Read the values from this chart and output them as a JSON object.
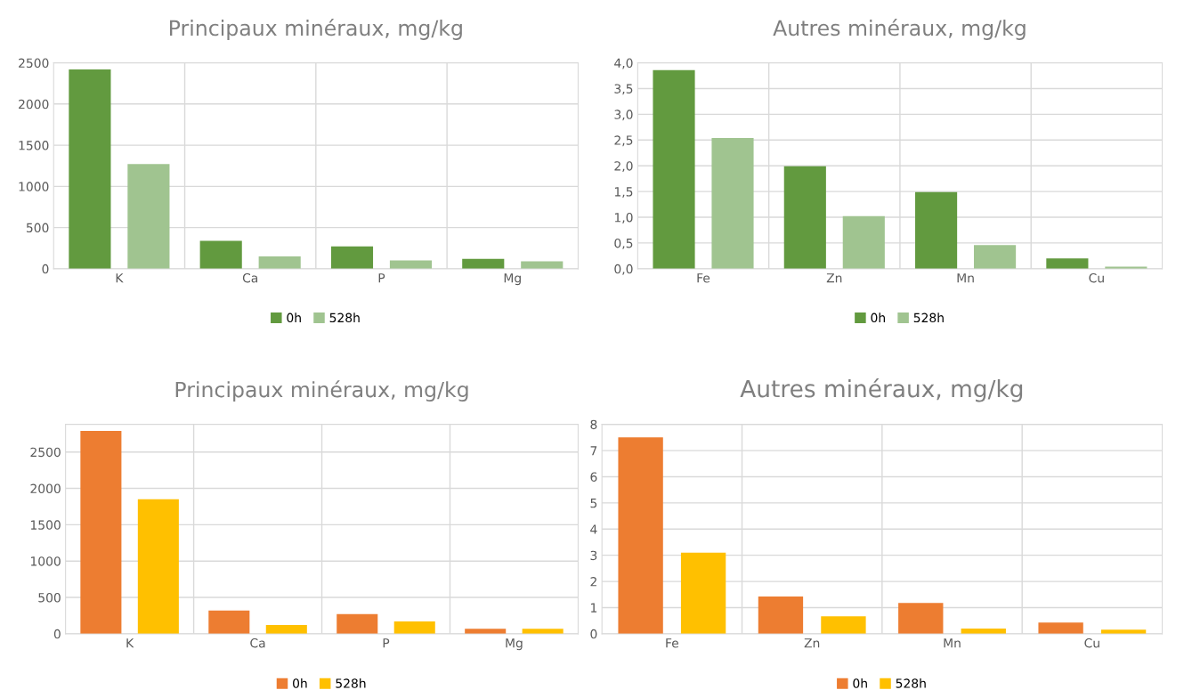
{
  "chart_data": [
    {
      "type": "bar",
      "title": "Principaux minéraux, mg/kg",
      "categories": [
        "K",
        "Ca",
        "P",
        "Mg"
      ],
      "series": [
        {
          "name": "0h",
          "color": "#629a3f",
          "values": [
            2420,
            340,
            270,
            120
          ]
        },
        {
          "name": "528h",
          "color": "#a0c490",
          "values": [
            1270,
            150,
            100,
            90
          ]
        }
      ],
      "ylim": [
        0,
        2500
      ],
      "yticks": [
        0,
        500,
        1000,
        1500,
        2000,
        2500
      ],
      "grid": true,
      "legend": "bottom"
    },
    {
      "type": "bar",
      "title": "Autres minéraux, mg/kg",
      "categories": [
        "Fe",
        "Zn",
        "Mn",
        "Cu"
      ],
      "series": [
        {
          "name": "0h",
          "color": "#629a3f",
          "values": [
            3.86,
            1.99,
            1.49,
            0.2
          ]
        },
        {
          "name": "528h",
          "color": "#a0c490",
          "values": [
            2.54,
            1.02,
            0.46,
            0.04
          ]
        }
      ],
      "ylim": [
        0,
        4
      ],
      "yticks": [
        {
          "value": 0,
          "label": "0,0"
        },
        {
          "value": 0.5,
          "label": "0,5"
        },
        {
          "value": 1,
          "label": "1,0"
        },
        {
          "value": 1.5,
          "label": "1,5"
        },
        {
          "value": 2,
          "label": "2,0"
        },
        {
          "value": 2.5,
          "label": "2,5"
        },
        {
          "value": 3,
          "label": "3,0"
        },
        {
          "value": 3.5,
          "label": "3,5"
        },
        {
          "value": 4,
          "label": "4,0"
        }
      ],
      "grid": true,
      "legend": "bottom"
    },
    {
      "type": "bar",
      "title": "Principaux minéraux, mg/kg",
      "categories": [
        "K",
        "Ca",
        "P",
        "Mg"
      ],
      "series": [
        {
          "name": "0h",
          "color": "#ed7d31",
          "values": [
            2790,
            320,
            270,
            70
          ]
        },
        {
          "name": "528h",
          "color": "#ffc000",
          "values": [
            1850,
            120,
            170,
            70
          ]
        }
      ],
      "ylim": [
        0,
        2880
      ],
      "yticks": [
        0,
        500,
        1000,
        1500,
        2000,
        2500
      ],
      "grid": true,
      "legend": "bottom"
    },
    {
      "type": "bar",
      "title": "Autres minéraux, mg/kg",
      "categories": [
        "Fe",
        "Zn",
        "Mn",
        "Cu"
      ],
      "series": [
        {
          "name": "0h",
          "color": "#ed7d31",
          "values": [
            7.5,
            1.42,
            1.18,
            0.43
          ]
        },
        {
          "name": "528h",
          "color": "#ffc000",
          "values": [
            3.1,
            0.67,
            0.2,
            0.16
          ]
        }
      ],
      "ylim": [
        0,
        8
      ],
      "yticks": [
        0,
        1,
        2,
        3,
        4,
        5,
        6,
        7,
        8
      ],
      "grid": true,
      "legend": "bottom"
    }
  ]
}
